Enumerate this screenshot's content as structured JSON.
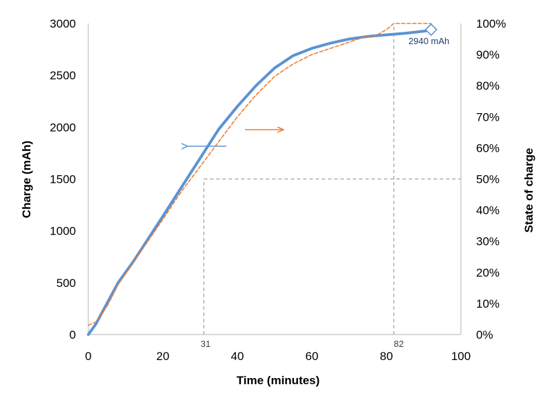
{
  "chart_data": {
    "type": "line",
    "x_label": "Time (minutes)",
    "y_label": "Charge (mAh)",
    "y2_label": "State of charge",
    "xlim": [
      0,
      100
    ],
    "ylim": [
      0,
      3000
    ],
    "y2lim": [
      0,
      100
    ],
    "x_ticks": [
      "0",
      "20",
      "40",
      "60",
      "80",
      "100"
    ],
    "y_ticks": [
      "0",
      "500",
      "1000",
      "1500",
      "2000",
      "2500",
      "3000"
    ],
    "y2_ticks": [
      "0%",
      "10%",
      "20%",
      "30%",
      "40%",
      "50%",
      "60%",
      "70%",
      "80%",
      "90%",
      "100%"
    ],
    "grid": false,
    "legend": "none",
    "series": [
      {
        "axis": "left",
        "color": "#5b93d3",
        "x": [
          0,
          2,
          5,
          8,
          12,
          16,
          20,
          25,
          30,
          35,
          40,
          45,
          50,
          55,
          60,
          65,
          70,
          75,
          80,
          85,
          90,
          92
        ],
        "y": [
          0,
          100,
          300,
          500,
          700,
          920,
          1140,
          1420,
          1700,
          1980,
          2200,
          2400,
          2570,
          2690,
          2760,
          2810,
          2850,
          2875,
          2890,
          2905,
          2925,
          2940
        ]
      },
      {
        "axis": "right",
        "color": "#ed7d31",
        "dashed": true,
        "x": [
          0,
          2,
          5,
          8,
          12,
          16,
          20,
          25,
          30,
          35,
          40,
          45,
          50,
          55,
          60,
          65,
          70,
          75,
          77,
          80,
          82,
          92
        ],
        "y": [
          3,
          4,
          9,
          16,
          23,
          30,
          37,
          46,
          54,
          62,
          70,
          77,
          83,
          87,
          90,
          92,
          94,
          96,
          96,
          98,
          100,
          100
        ]
      }
    ],
    "annotations": {
      "end_value": "2940 mAh",
      "end_point": {
        "x": 92,
        "y": 2940
      },
      "half_charge_time": "31",
      "half_charge": {
        "x": 31,
        "y": 1500
      },
      "full_charge_time": "82",
      "full_charge": {
        "x": 82,
        "y2": 100
      }
    }
  }
}
